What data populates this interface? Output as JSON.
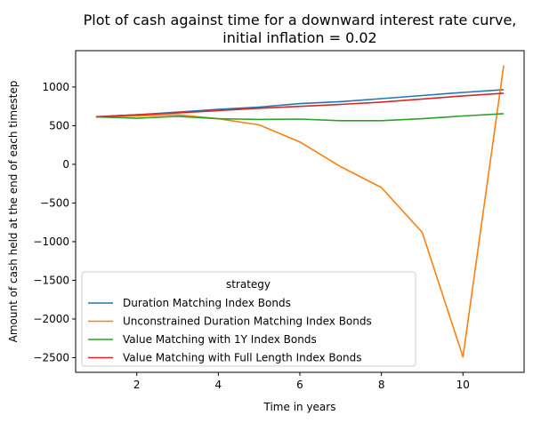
{
  "chart_data": {
    "type": "line",
    "title_line1": "Plot of cash against time for a downward interest rate curve,",
    "title_line2": "initial inflation = 0.02",
    "xlabel": "Time in years",
    "ylabel": "Amount of cash held at the end of each timestep",
    "xlim": [
      0.5,
      11.5
    ],
    "ylim": [
      -2690,
      1470
    ],
    "xticks": [
      2,
      4,
      6,
      8,
      10
    ],
    "yticks": [
      1000,
      500,
      0,
      -500,
      -1000,
      -1500,
      -2000,
      -2500
    ],
    "grid": false,
    "legend": {
      "title": "strategy",
      "placement": "lower-left"
    },
    "x": [
      1,
      2,
      3,
      4,
      5,
      6,
      7,
      8,
      9,
      10,
      11
    ],
    "series": [
      {
        "name": "Duration Matching Index Bonds",
        "color": "#1f77b4",
        "values": [
          615,
          640,
          675,
          710,
          740,
          785,
          810,
          850,
          890,
          930,
          965
        ]
      },
      {
        "name": "Unconstrained Duration Matching Index Bonds",
        "color": "#ff7f0e",
        "values": [
          615,
          625,
          640,
          590,
          510,
          290,
          -30,
          -300,
          -880,
          -2490,
          1280
        ]
      },
      {
        "name": "Value Matching with 1Y Index Bonds",
        "color": "#2ca02c",
        "values": [
          615,
          595,
          620,
          590,
          580,
          585,
          565,
          565,
          590,
          625,
          655
        ]
      },
      {
        "name": "Value Matching with Full Length Index Bonds",
        "color": "#d62728",
        "values": [
          615,
          640,
          665,
          695,
          725,
          750,
          775,
          805,
          845,
          885,
          920
        ]
      }
    ]
  }
}
